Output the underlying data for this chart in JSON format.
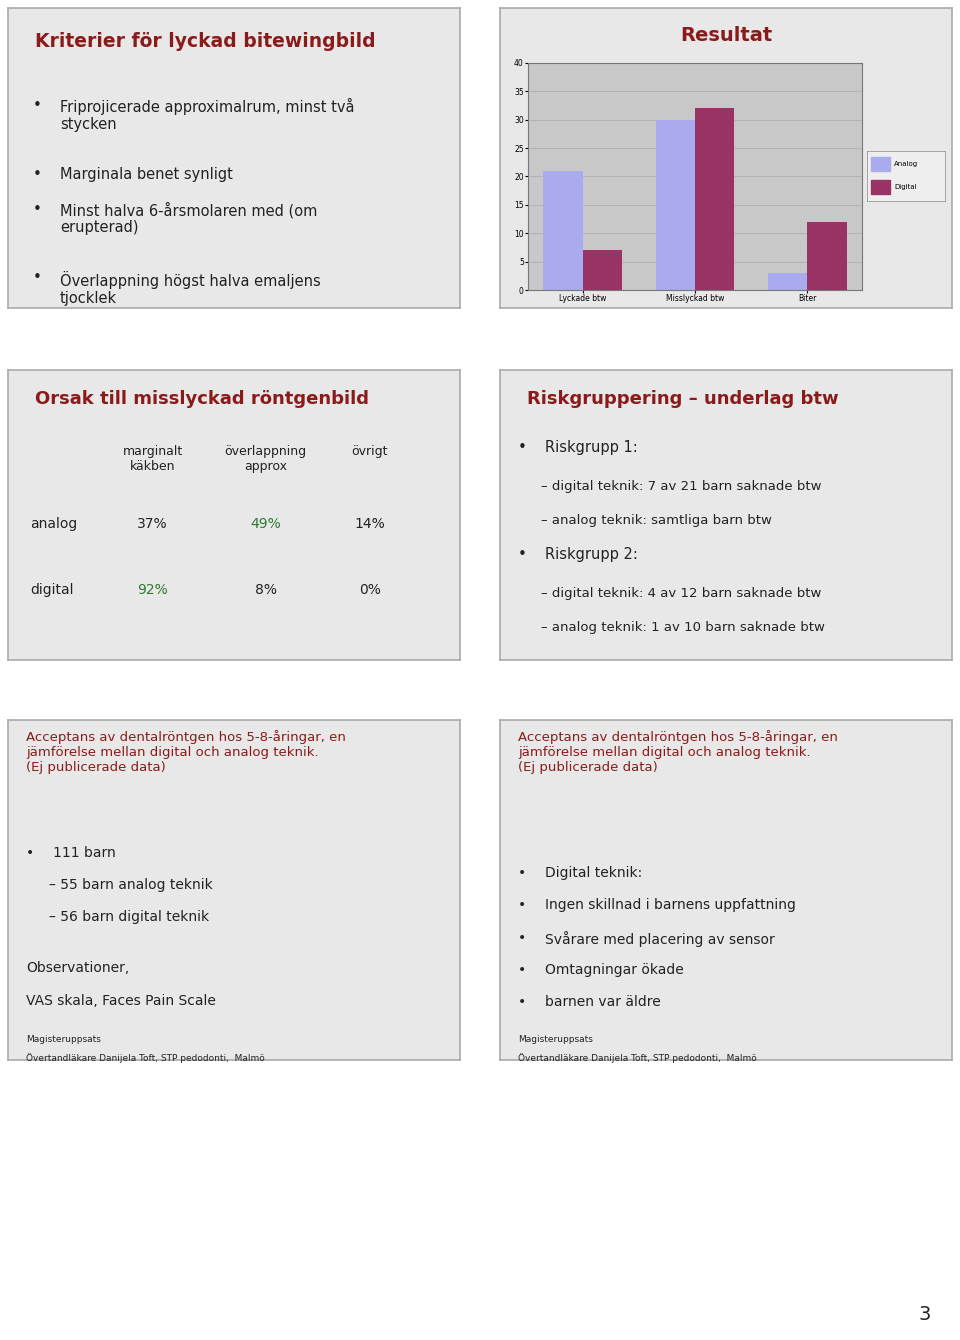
{
  "page_bg": "#ffffff",
  "panel_bg": "#e8e8e8",
  "panel_border": "#aaaaaa",
  "title_color": "#8B1a1a",
  "text_color": "#222222",
  "green_color": "#2d7a2d",
  "panel1_title": "Kriterier för lyckad bitewingbild",
  "panel1_bullets": [
    "Friprojicerade approximalrum, minst två\nstycken",
    "Marginala benet synligt",
    "Minst halva 6-årsmolaren med (om\nerupterad)",
    "Överlappning högst halva emaljens\ntjocklek"
  ],
  "panel2_title": "Resultat",
  "chart_categories": [
    "Lyckade btw",
    "Misslyckad btw",
    "Biter"
  ],
  "chart_analog": [
    21,
    30,
    3
  ],
  "chart_digital": [
    7,
    32,
    12
  ],
  "chart_ylim_max": 40,
  "chart_yticks": [
    0,
    5,
    10,
    15,
    20,
    25,
    30,
    35,
    40
  ],
  "chart_analog_color": "#aaaaee",
  "chart_digital_color": "#993366",
  "chart_legend_labels": [
    "Analog",
    "Digital"
  ],
  "chart_area_bg": "#c8c8c8",
  "panel3_title": "Orsak till misslyckad röntgenbild",
  "panel3_headers": [
    "marginalt\nkäkben",
    "överlappning\napprox",
    "övrigt"
  ],
  "panel3_rows": [
    {
      "label": "analog",
      "vals": [
        "37%",
        "49%",
        "14%"
      ],
      "green_idx": 1
    },
    {
      "label": "digital",
      "vals": [
        "92%",
        "8%",
        "0%"
      ],
      "green_idx": 0
    }
  ],
  "panel4_title": "Riskgruppering – underlag btw",
  "panel4_items": [
    {
      "bullet": true,
      "text": "Riskgrupp 1:"
    },
    {
      "bullet": false,
      "text": "– digital teknik: 7 av 21 barn saknade btw"
    },
    {
      "bullet": false,
      "text": "– analog teknik: samtliga barn btw"
    },
    {
      "bullet": true,
      "text": "Riskgrupp 2:"
    },
    {
      "bullet": false,
      "text": "– digital teknik: 4 av 12 barn saknade btw"
    },
    {
      "bullet": false,
      "text": "– analog teknik: 1 av 10 barn saknade btw"
    }
  ],
  "panel5_title": "Acceptans av dentalröntgen hos 5-8-åringar, en\njämförelse mellan digital och analog teknik.\n(Ej publicerade data)",
  "panel5_items": [
    {
      "type": "bullet",
      "text": "111 barn"
    },
    {
      "type": "sub",
      "text": "– 55 barn analog teknik"
    },
    {
      "type": "sub",
      "text": "– 56 barn digital teknik"
    },
    {
      "type": "blank",
      "text": ""
    },
    {
      "type": "plain",
      "text": "Observationer,"
    },
    {
      "type": "plain",
      "text": "VAS skala, Faces Pain Scale"
    }
  ],
  "panel5_footer": [
    "Magisteruppsats",
    "Övertandläkare Danijela Toft, STP pedodonti,  Malmö"
  ],
  "panel6_title": "Acceptans av dentalröntgen hos 5-8-åringar, en\njämförelse mellan digital och analog teknik.\n(Ej publicerade data)",
  "panel6_items": [
    {
      "text": "Digital teknik:"
    },
    {
      "text": "Ingen skillnad i barnens uppfattning"
    },
    {
      "text": "Svårare med placering av sensor"
    },
    {
      "text": "Omtagningar ökade"
    },
    {
      "text": "barnen var äldre"
    }
  ],
  "panel6_footer": [
    "Magisteruppsats",
    "Övertandläkare Danijela Toft, STP pedodonti,  Malmö"
  ],
  "page_number": "3"
}
